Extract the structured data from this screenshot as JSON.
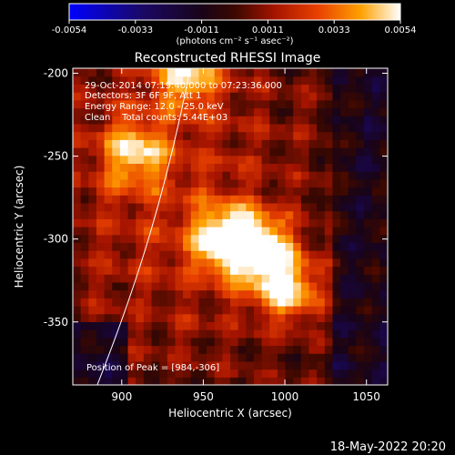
{
  "chart_data": {
    "type": "heatmap",
    "title": "Reconstructed RHESSI Image",
    "xlabel": "Heliocentric X (arcsec)",
    "ylabel": "Heliocentric Y (arcsec)",
    "xlim": [
      870,
      1063
    ],
    "ylim": [
      -388,
      -197
    ],
    "xticks": [
      900,
      950,
      1000,
      1050
    ],
    "yticks": [
      -200,
      -250,
      -300,
      -350
    ],
    "colorbar": {
      "range": [
        -0.0054,
        0.0054
      ],
      "tick_labels": [
        "-0.0054",
        "-0.0033",
        "-0.0011",
        "0.0011",
        "0.0033",
        "0.0054"
      ],
      "units": "(photons cm⁻² s⁻¹ asec⁻²)",
      "colormap": "blue-black-red-yellow-white"
    },
    "annotations": [
      "29-Oct-2014 07:19:40.000 to 07:23:36.000",
      "Detectors: 3F 6F 9F, Att 1",
      "Energy Range: 12.0 - 25.0 keV",
      "Clean    Total counts: 5.44E+03"
    ],
    "peak_label": "Position of Peak = [984,-306]",
    "peak": [
      984,
      -306
    ],
    "sources": [
      {
        "x": 984,
        "y": -306,
        "value": 0.0054
      },
      {
        "x": 962,
        "y": -300,
        "value": 0.0045
      },
      {
        "x": 1002,
        "y": -330,
        "value": 0.0044
      },
      {
        "x": 940,
        "y": -200,
        "value": 0.004
      },
      {
        "x": 908,
        "y": -248,
        "value": 0.0036
      }
    ],
    "limb_arc": {
      "points": [
        [
          885,
          -388
        ],
        [
          905,
          -338
        ],
        [
          925,
          -282
        ],
        [
          942,
          -197
        ]
      ],
      "color": "#ffffff"
    },
    "grid": false
  },
  "footer": {
    "timestamp": "18-May-2022 20:20"
  }
}
